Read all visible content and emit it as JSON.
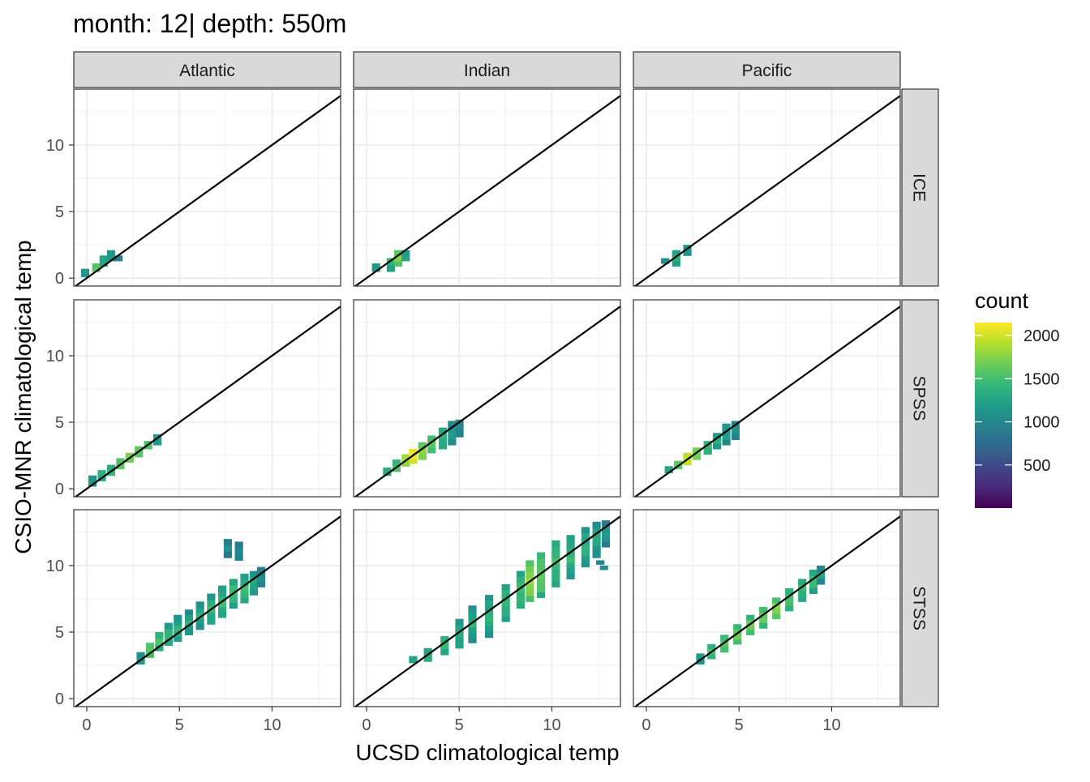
{
  "chart_data": {
    "type": "heatmap",
    "title": "month: 12| depth: 550m",
    "xlabel": "UCSD climatological temp",
    "ylabel": "CSIO-MNR climatological temp",
    "xlim": [
      -0.7,
      13.7
    ],
    "ylim": [
      -0.6,
      14.2
    ],
    "x_ticks": [
      0,
      5,
      10
    ],
    "y_ticks": [
      0,
      5,
      10
    ],
    "col_facets": [
      "Atlantic",
      "Indian",
      "Pacific"
    ],
    "row_facets": [
      "ICE",
      "SPSS",
      "STSS"
    ],
    "reference_line": "y = x",
    "grid": true,
    "legend": {
      "title": "count",
      "position": "right",
      "ticks": [
        500,
        1000,
        1500,
        2000
      ],
      "range": [
        1,
        2150
      ],
      "colors": [
        "#440154",
        "#482878",
        "#3e4989",
        "#31688e",
        "#26828e",
        "#1f9e89",
        "#35b779",
        "#6ece58",
        "#b5de2b",
        "#fde725"
      ]
    },
    "panels": [
      {
        "row": "ICE",
        "col": "Atlantic",
        "bands": [
          [
            -0.1,
            0.1,
            0.7,
            40
          ],
          [
            0.5,
            0.5,
            1.1,
            260
          ],
          [
            0.9,
            0.9,
            1.7,
            120
          ],
          [
            1.3,
            1.3,
            2.1,
            60
          ],
          [
            1.7,
            1.3,
            1.7,
            30
          ]
        ]
      },
      {
        "row": "ICE",
        "col": "Indian",
        "bands": [
          [
            0.5,
            0.5,
            1.1,
            60
          ],
          [
            1.3,
            0.5,
            1.5,
            140
          ],
          [
            1.7,
            0.9,
            2.1,
            380
          ],
          [
            2.1,
            1.3,
            2.1,
            90
          ]
        ]
      },
      {
        "row": "ICE",
        "col": "Pacific",
        "bands": [
          [
            1.0,
            1.1,
            1.5,
            50
          ],
          [
            1.6,
            0.9,
            2.1,
            110
          ],
          [
            2.2,
            1.7,
            2.5,
            90
          ]
        ]
      },
      {
        "row": "SPSS",
        "col": "Atlantic",
        "bands": [
          [
            0.3,
            0.2,
            1.0,
            60
          ],
          [
            0.8,
            0.6,
            1.4,
            140
          ],
          [
            1.3,
            1.0,
            1.8,
            200
          ],
          [
            1.8,
            1.5,
            2.3,
            320
          ],
          [
            2.3,
            2.0,
            2.7,
            700
          ],
          [
            2.8,
            2.4,
            3.2,
            300
          ],
          [
            3.3,
            3.0,
            3.6,
            180
          ],
          [
            3.8,
            3.3,
            4.1,
            90
          ]
        ]
      },
      {
        "row": "SPSS",
        "col": "Indian",
        "bands": [
          [
            1.1,
            1.0,
            1.6,
            70
          ],
          [
            1.6,
            1.3,
            2.2,
            260
          ],
          [
            2.1,
            1.7,
            2.6,
            900
          ],
          [
            2.5,
            1.9,
            3.0,
            2150
          ],
          [
            3.0,
            2.2,
            3.5,
            650
          ],
          [
            3.5,
            2.7,
            4.0,
            250
          ],
          [
            4.1,
            3.0,
            4.6,
            150
          ],
          [
            4.6,
            3.3,
            5.1,
            80
          ],
          [
            5.0,
            3.9,
            5.2,
            40
          ]
        ]
      },
      {
        "row": "SPSS",
        "col": "Pacific",
        "bands": [
          [
            1.2,
            1.2,
            1.7,
            60
          ],
          [
            1.7,
            1.5,
            2.1,
            250
          ],
          [
            2.2,
            1.8,
            2.7,
            1200
          ],
          [
            2.7,
            2.2,
            3.1,
            500
          ],
          [
            3.3,
            2.6,
            3.6,
            200
          ],
          [
            3.8,
            3.0,
            4.2,
            130
          ],
          [
            4.3,
            3.3,
            4.9,
            80
          ],
          [
            4.8,
            3.7,
            5.1,
            50
          ]
        ]
      },
      {
        "row": "STSS",
        "col": "Atlantic",
        "bands": [
          [
            2.9,
            2.6,
            3.5,
            70
          ],
          [
            3.4,
            3.1,
            4.2,
            300
          ],
          [
            3.9,
            3.6,
            5.0,
            220
          ],
          [
            4.4,
            4.0,
            5.7,
            150
          ],
          [
            4.9,
            4.3,
            6.3,
            110
          ],
          [
            5.5,
            4.8,
            6.7,
            90
          ],
          [
            6.1,
            5.2,
            7.3,
            100
          ],
          [
            6.7,
            5.6,
            7.9,
            140
          ],
          [
            7.3,
            6.1,
            8.5,
            150
          ],
          [
            7.9,
            6.8,
            9.0,
            180
          ],
          [
            8.5,
            7.2,
            9.4,
            150
          ],
          [
            9.0,
            7.8,
            9.6,
            90
          ],
          [
            9.4,
            8.4,
            9.9,
            50
          ],
          [
            7.6,
            10.6,
            12.0,
            40
          ],
          [
            8.2,
            10.4,
            11.8,
            40
          ]
        ]
      },
      {
        "row": "STSS",
        "col": "Indian",
        "bands": [
          [
            2.5,
            2.7,
            3.2,
            100
          ],
          [
            3.3,
            2.8,
            3.8,
            130
          ],
          [
            4.2,
            3.3,
            4.7,
            150
          ],
          [
            5.0,
            3.8,
            6.0,
            120
          ],
          [
            5.7,
            4.2,
            7.0,
            110
          ],
          [
            6.6,
            4.6,
            7.8,
            110
          ],
          [
            7.5,
            5.8,
            8.6,
            160
          ],
          [
            8.3,
            6.8,
            9.6,
            220
          ],
          [
            8.8,
            7.3,
            10.4,
            500
          ],
          [
            9.4,
            7.6,
            11.0,
            300
          ],
          [
            10.2,
            8.4,
            11.9,
            180
          ],
          [
            11.0,
            9.0,
            12.3,
            140
          ],
          [
            11.8,
            9.9,
            12.9,
            120
          ],
          [
            12.4,
            10.6,
            13.3,
            80
          ],
          [
            12.9,
            11.4,
            13.4,
            50
          ],
          [
            12.6,
            10.1,
            10.4,
            30
          ],
          [
            12.8,
            9.7,
            10.0,
            30
          ]
        ]
      },
      {
        "row": "STSS",
        "col": "Pacific",
        "bands": [
          [
            2.9,
            2.6,
            3.4,
            80
          ],
          [
            3.5,
            3.0,
            4.1,
            200
          ],
          [
            4.2,
            3.5,
            4.8,
            260
          ],
          [
            4.9,
            4.1,
            5.6,
            350
          ],
          [
            5.6,
            4.8,
            6.3,
            300
          ],
          [
            6.3,
            5.3,
            6.9,
            280
          ],
          [
            7.0,
            6.0,
            7.6,
            500
          ],
          [
            7.7,
            6.6,
            8.3,
            250
          ],
          [
            8.4,
            7.3,
            9.0,
            200
          ],
          [
            9.0,
            7.9,
            9.7,
            150
          ],
          [
            9.4,
            8.6,
            10.0,
            60
          ]
        ]
      }
    ]
  }
}
